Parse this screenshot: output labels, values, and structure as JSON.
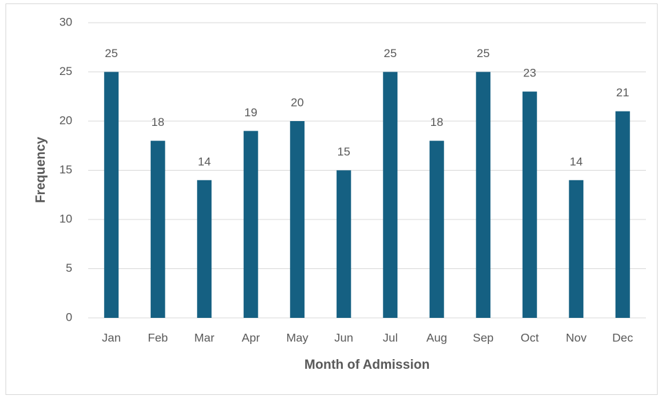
{
  "chart_data": {
    "type": "bar",
    "categories": [
      "Jan",
      "Feb",
      "Mar",
      "Apr",
      "May",
      "Jun",
      "Jul",
      "Aug",
      "Sep",
      "Oct",
      "Nov",
      "Dec"
    ],
    "values": [
      25,
      18,
      14,
      19,
      20,
      15,
      25,
      18,
      25,
      23,
      14,
      21
    ],
    "color": "#156082",
    "x_label": "Month of Admission",
    "y_label": "Frequency",
    "ylim": [
      0,
      30
    ],
    "yticks": [
      0,
      5,
      10,
      15,
      20,
      25,
      30
    ],
    "grid": true
  }
}
